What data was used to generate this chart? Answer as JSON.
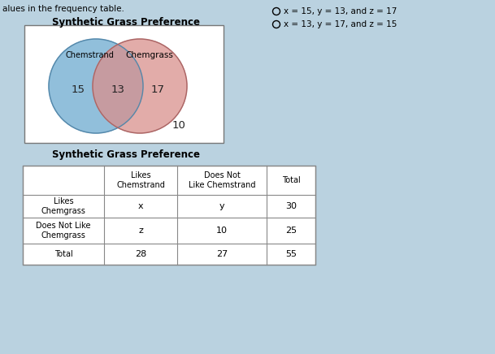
{
  "title_venn": "Synthetic Grass Preference",
  "title_table": "Synthetic Grass Preference",
  "label_left": "Chemstrand",
  "label_right": "Chemgrass",
  "val_left": "15",
  "val_center": "13",
  "val_right": "17",
  "val_bottom": "10",
  "color_left": "#85b8d8",
  "color_right": "#d9908c",
  "bg_color": "#bad2e0",
  "option1": "x = 15, y = 13, and z = 17",
  "option2": "x = 13, y = 17, and z = 15",
  "table_col_headers": [
    "",
    "Likes\nChemstrand",
    "Does Not\nLike Chemstrand",
    "Total"
  ],
  "table_row_headers": [
    "Likes\nChemgrass",
    "Does Not Like\nChemgrass",
    "Total"
  ],
  "table_data": [
    [
      "x",
      "y",
      "30"
    ],
    [
      "z",
      "10",
      "25"
    ],
    [
      "28",
      "27",
      "55"
    ]
  ],
  "text_top": "alues in the frequency table."
}
